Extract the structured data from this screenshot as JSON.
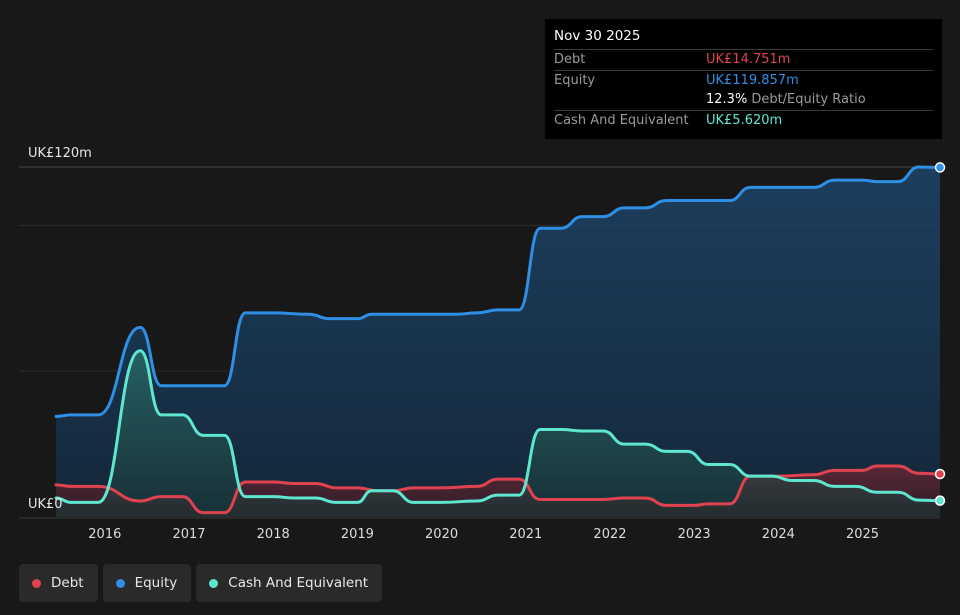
{
  "colors": {
    "debt": "#e0434f",
    "equity": "#2f8fe4",
    "cash": "#5ee6cf",
    "background": "#181818"
  },
  "tooltip": {
    "date": "Nov 30 2025",
    "rows": [
      {
        "label": "Debt",
        "value": "UK£14.751m",
        "color_key": "debt"
      },
      {
        "label": "Equity",
        "value": "UK£119.857m",
        "color_key": "equity"
      },
      {
        "label": "",
        "ratio_value": "12.3%",
        "ratio_label": "Debt/Equity Ratio"
      },
      {
        "label": "Cash And Equivalent",
        "value": "UK£5.620m",
        "color_key": "cash"
      }
    ]
  },
  "legend": [
    {
      "label": "Debt",
      "color_key": "debt"
    },
    {
      "label": "Equity",
      "color_key": "equity"
    },
    {
      "label": "Cash And Equivalent",
      "color_key": "cash"
    }
  ],
  "chart_data": {
    "type": "area",
    "y_top_label": "UK£120m",
    "y_bottom_label": "UK£0",
    "ylim": [
      0,
      120
    ],
    "xlim": [
      2015.42,
      2025.92
    ],
    "x_ticks": [
      "2016",
      "2017",
      "2018",
      "2019",
      "2020",
      "2021",
      "2022",
      "2023",
      "2024",
      "2025"
    ],
    "grid": true,
    "series": [
      {
        "name": "Equity",
        "color_key": "equity",
        "points": [
          [
            2015.42,
            34.5
          ],
          [
            2015.6,
            35
          ],
          [
            2015.92,
            35
          ],
          [
            2016.42,
            65
          ],
          [
            2016.67,
            45
          ],
          [
            2017.0,
            45
          ],
          [
            2017.42,
            45
          ],
          [
            2017.67,
            70
          ],
          [
            2018.0,
            70
          ],
          [
            2018.42,
            69.5
          ],
          [
            2018.67,
            68
          ],
          [
            2019.0,
            68
          ],
          [
            2019.17,
            69.5
          ],
          [
            2019.67,
            69.5
          ],
          [
            2020.17,
            69.5
          ],
          [
            2020.42,
            70
          ],
          [
            2020.67,
            71
          ],
          [
            2020.92,
            71
          ],
          [
            2021.17,
            99
          ],
          [
            2021.42,
            99
          ],
          [
            2021.67,
            103
          ],
          [
            2021.92,
            103
          ],
          [
            2022.17,
            106
          ],
          [
            2022.42,
            106
          ],
          [
            2022.67,
            108.5
          ],
          [
            2023.0,
            108.5
          ],
          [
            2023.42,
            108.5
          ],
          [
            2023.67,
            113
          ],
          [
            2024.0,
            113
          ],
          [
            2024.42,
            113
          ],
          [
            2024.67,
            115.5
          ],
          [
            2025.0,
            115.5
          ],
          [
            2025.17,
            115
          ],
          [
            2025.42,
            115
          ],
          [
            2025.67,
            120
          ],
          [
            2025.92,
            119.857
          ]
        ]
      },
      {
        "name": "Debt",
        "color_key": "debt",
        "points": [
          [
            2015.42,
            11
          ],
          [
            2015.6,
            10.5
          ],
          [
            2015.92,
            10.5
          ],
          [
            2016.42,
            5.5
          ],
          [
            2016.67,
            7
          ],
          [
            2016.92,
            7
          ],
          [
            2017.17,
            1.5
          ],
          [
            2017.42,
            1.5
          ],
          [
            2017.67,
            12
          ],
          [
            2018.0,
            12
          ],
          [
            2018.25,
            11.5
          ],
          [
            2018.5,
            11.5
          ],
          [
            2018.75,
            10
          ],
          [
            2019.0,
            10
          ],
          [
            2019.25,
            9
          ],
          [
            2019.42,
            9
          ],
          [
            2019.67,
            10
          ],
          [
            2020.0,
            10
          ],
          [
            2020.42,
            10.5
          ],
          [
            2020.67,
            13
          ],
          [
            2020.92,
            13
          ],
          [
            2021.17,
            6
          ],
          [
            2021.42,
            6
          ],
          [
            2021.67,
            6
          ],
          [
            2021.92,
            6
          ],
          [
            2022.17,
            6.5
          ],
          [
            2022.42,
            6.5
          ],
          [
            2022.67,
            4
          ],
          [
            2023.0,
            4
          ],
          [
            2023.17,
            4.5
          ],
          [
            2023.42,
            4.5
          ],
          [
            2023.67,
            14
          ],
          [
            2024.0,
            14
          ],
          [
            2024.42,
            14.5
          ],
          [
            2024.67,
            16
          ],
          [
            2025.0,
            16
          ],
          [
            2025.17,
            17.5
          ],
          [
            2025.42,
            17.5
          ],
          [
            2025.67,
            15
          ],
          [
            2025.92,
            14.751
          ]
        ]
      },
      {
        "name": "Cash And Equivalent",
        "color_key": "cash",
        "points": [
          [
            2015.42,
            6.5
          ],
          [
            2015.6,
            5
          ],
          [
            2015.92,
            5
          ],
          [
            2016.42,
            57
          ],
          [
            2016.67,
            35
          ],
          [
            2016.92,
            35
          ],
          [
            2017.17,
            28
          ],
          [
            2017.42,
            28
          ],
          [
            2017.67,
            7
          ],
          [
            2018.0,
            7
          ],
          [
            2018.25,
            6.5
          ],
          [
            2018.5,
            6.5
          ],
          [
            2018.75,
            5
          ],
          [
            2019.0,
            5
          ],
          [
            2019.17,
            9
          ],
          [
            2019.42,
            9
          ],
          [
            2019.67,
            5
          ],
          [
            2020.0,
            5
          ],
          [
            2020.42,
            5.5
          ],
          [
            2020.67,
            7.5
          ],
          [
            2020.92,
            7.5
          ],
          [
            2021.17,
            30
          ],
          [
            2021.42,
            30
          ],
          [
            2021.67,
            29.5
          ],
          [
            2021.92,
            29.5
          ],
          [
            2022.17,
            25
          ],
          [
            2022.42,
            25
          ],
          [
            2022.67,
            22.5
          ],
          [
            2022.92,
            22.5
          ],
          [
            2023.17,
            18
          ],
          [
            2023.42,
            18
          ],
          [
            2023.67,
            14
          ],
          [
            2023.92,
            14
          ],
          [
            2024.17,
            12.5
          ],
          [
            2024.42,
            12.5
          ],
          [
            2024.67,
            10.5
          ],
          [
            2024.92,
            10.5
          ],
          [
            2025.17,
            8.5
          ],
          [
            2025.42,
            8.5
          ],
          [
            2025.67,
            5.8
          ],
          [
            2025.92,
            5.62
          ]
        ]
      }
    ]
  }
}
